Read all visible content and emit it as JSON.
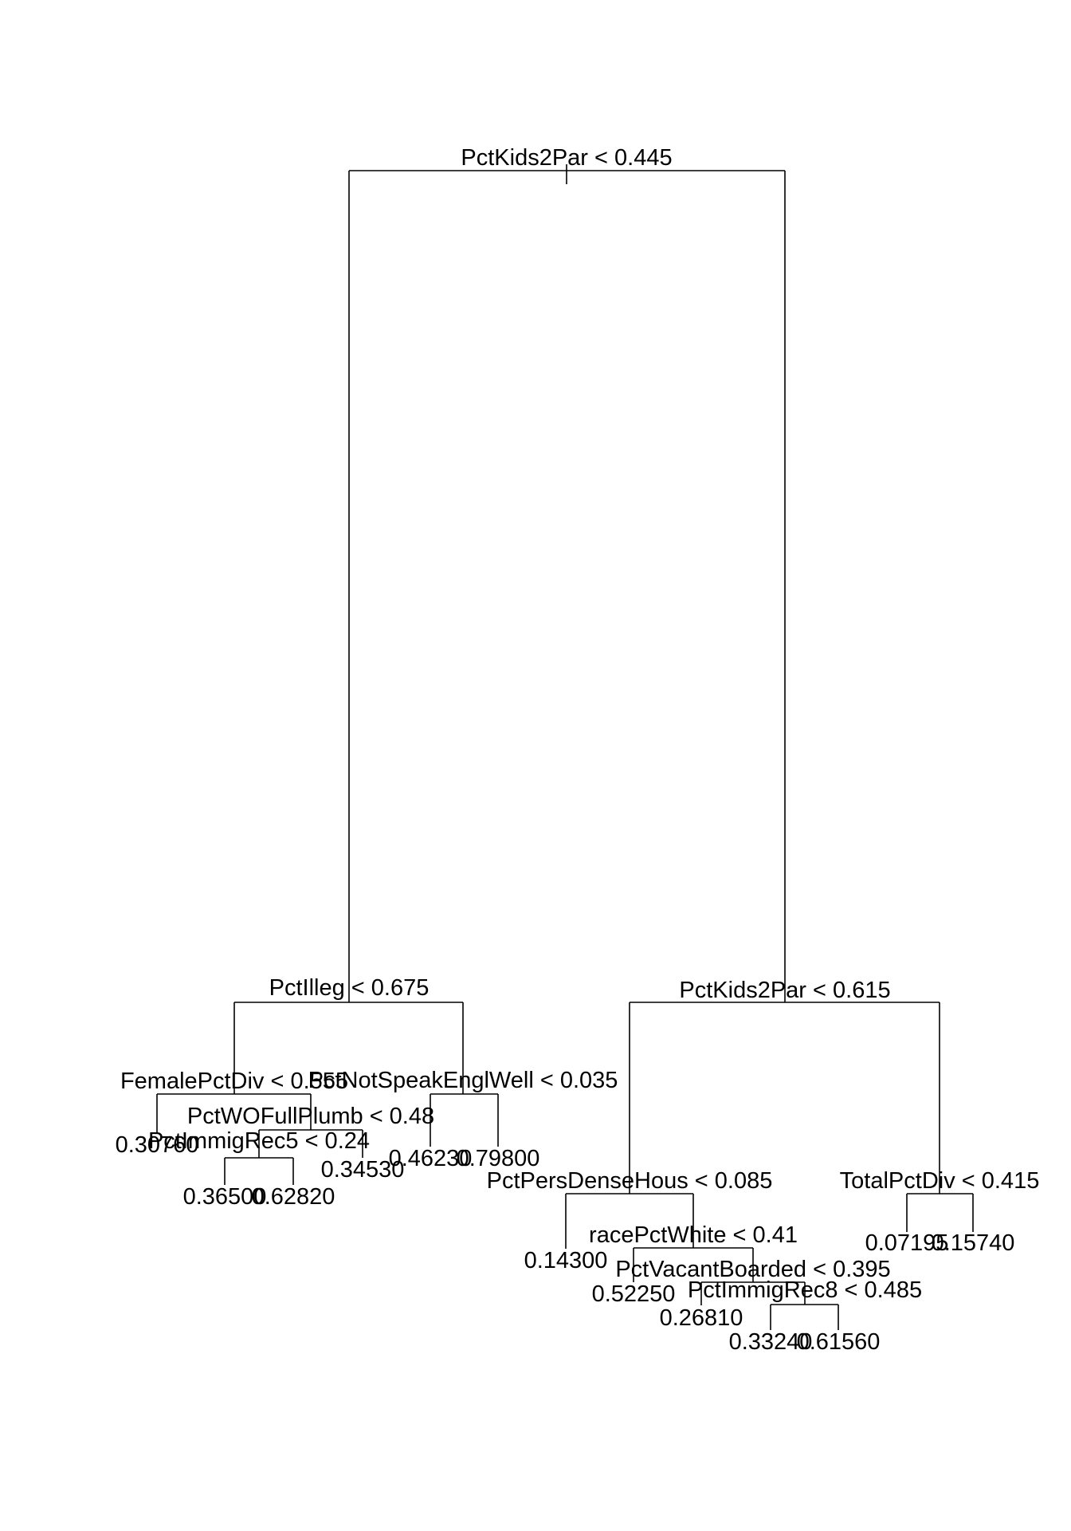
{
  "tree": {
    "colors": {
      "line": "#000000",
      "text": "#000000",
      "background": "#ffffff"
    },
    "nodes": [
      {
        "id": "n1",
        "label": "PctKids2Par < 0.445"
      },
      {
        "id": "n2",
        "label": "PctIlleg < 0.675"
      },
      {
        "id": "n3",
        "label": "PctKids2Par < 0.615"
      },
      {
        "id": "n4",
        "label": "FemalePctDiv < 0.555"
      },
      {
        "id": "n5",
        "label": "PctNotSpeakEnglWell < 0.035"
      },
      {
        "id": "n6",
        "label": "PctWOFullPlumb < 0.48"
      },
      {
        "id": "n7",
        "label": "PctImmigRec5 < 0.24"
      },
      {
        "id": "n8",
        "label": "PctPersDenseHous < 0.085"
      },
      {
        "id": "n9",
        "label": "TotalPctDiv < 0.415"
      },
      {
        "id": "n10",
        "label": "racePctWhite < 0.41"
      },
      {
        "id": "n11",
        "label": "PctVacantBoarded < 0.395"
      },
      {
        "id": "n12",
        "label": "PctImmigRec8 < 0.485"
      }
    ],
    "leaves": [
      {
        "id": "l1",
        "value": "0.30760"
      },
      {
        "id": "l2",
        "value": "0.36500"
      },
      {
        "id": "l3",
        "value": "0.62820"
      },
      {
        "id": "l4",
        "value": "0.34530"
      },
      {
        "id": "l5",
        "value": "0.46230"
      },
      {
        "id": "l6",
        "value": "0.79800"
      },
      {
        "id": "l7",
        "value": "0.14300"
      },
      {
        "id": "l8",
        "value": "0.52250"
      },
      {
        "id": "l9",
        "value": "0.26810"
      },
      {
        "id": "l10",
        "value": "0.33240"
      },
      {
        "id": "l11",
        "value": "0.61560"
      },
      {
        "id": "l12",
        "value": "0.07195"
      },
      {
        "id": "l13",
        "value": "0.15740"
      }
    ]
  }
}
